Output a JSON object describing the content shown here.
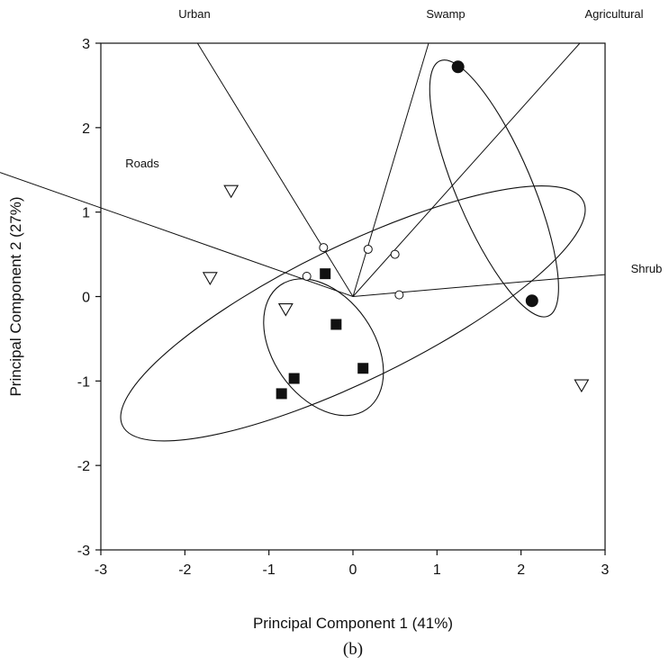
{
  "chart_data": {
    "type": "scatter",
    "title": "",
    "caption": "(b)",
    "xlabel": "Principal Component 1 (41%)",
    "ylabel": "Principal Component 2 (27%)",
    "xlim": [
      -3,
      3
    ],
    "ylim": [
      -3,
      3
    ],
    "xticks": [
      "-3",
      "-2",
      "-1",
      "0",
      "1",
      "2",
      "3"
    ],
    "yticks": [
      "-3",
      "-2",
      "-1",
      "0",
      "1",
      "2",
      "3"
    ],
    "grid": false,
    "legend": null,
    "vectors": [
      {
        "label": "Urban",
        "x": -1.85,
        "y": 3.0
      },
      {
        "label": "Swamp",
        "x": 0.9,
        "y": 3.0
      },
      {
        "label": "Agricultural",
        "x": 2.7,
        "y": 3.0
      },
      {
        "label": "Roads",
        "x": -3.0,
        "y": 1.47
      },
      {
        "label": "Shrub",
        "x": 3.0,
        "y": 0.26
      }
    ],
    "series": [
      {
        "marker": "open-circle",
        "points": [
          [
            -0.35,
            0.58
          ],
          [
            0.18,
            0.56
          ],
          [
            0.5,
            0.5
          ],
          [
            -0.55,
            0.24
          ],
          [
            0.55,
            0.02
          ]
        ]
      },
      {
        "marker": "open-triangle-down",
        "points": [
          [
            -1.45,
            1.25
          ],
          [
            -1.7,
            0.22
          ],
          [
            -0.8,
            -0.15
          ],
          [
            2.72,
            -1.05
          ]
        ]
      },
      {
        "marker": "filled-square",
        "points": [
          [
            -0.33,
            0.27
          ],
          [
            -0.2,
            -0.33
          ],
          [
            0.12,
            -0.85
          ],
          [
            -0.7,
            -0.97
          ],
          [
            -0.85,
            -1.15
          ]
        ]
      },
      {
        "marker": "filled-circle",
        "points": [
          [
            1.25,
            2.72
          ],
          [
            2.13,
            -0.05
          ]
        ]
      }
    ],
    "ellipses": [
      {
        "cx": 0.0,
        "cy": -0.2,
        "rx": 3.05,
        "ry": 0.8,
        "angle_deg": -26
      },
      {
        "cx": -0.35,
        "cy": -0.6,
        "rx": 0.9,
        "ry": 0.6,
        "angle_deg": 55
      },
      {
        "cx": 1.68,
        "cy": 1.28,
        "rx": 1.65,
        "ry": 0.45,
        "angle_deg": 67
      }
    ]
  }
}
